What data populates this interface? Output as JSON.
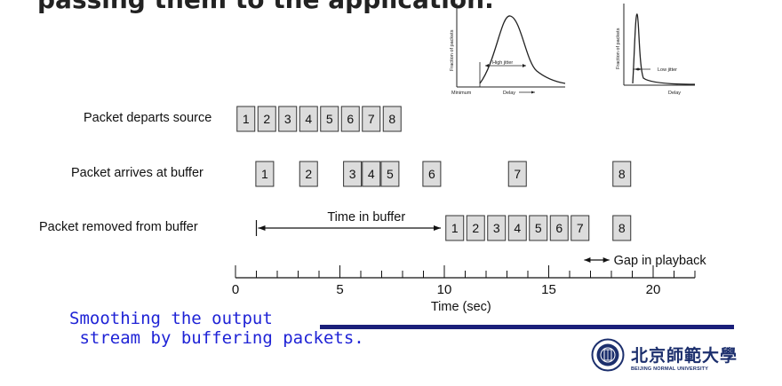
{
  "title_partial": "passing them to the application.",
  "rows": {
    "depart": {
      "label": "Packet departs source",
      "packets": [
        {
          "n": "1",
          "t": 0.5
        },
        {
          "n": "2",
          "t": 1.5
        },
        {
          "n": "3",
          "t": 2.5
        },
        {
          "n": "4",
          "t": 3.5
        },
        {
          "n": "5",
          "t": 4.5
        },
        {
          "n": "6",
          "t": 5.5
        },
        {
          "n": "7",
          "t": 6.5
        },
        {
          "n": "8",
          "t": 7.5
        }
      ]
    },
    "arrive": {
      "label": "Packet arrives at buffer",
      "packets": [
        {
          "n": "1",
          "t": 1.4
        },
        {
          "n": "2",
          "t": 3.5
        },
        {
          "n": "3",
          "t": 5.6
        },
        {
          "n": "4",
          "t": 6.5
        },
        {
          "n": "5",
          "t": 7.4
        },
        {
          "n": "6",
          "t": 9.4
        },
        {
          "n": "7",
          "t": 13.5
        },
        {
          "n": "8",
          "t": 18.5
        }
      ]
    },
    "removed": {
      "label": "Packet removed from buffer",
      "packets": [
        {
          "n": "1",
          "t": 10.5
        },
        {
          "n": "2",
          "t": 11.5
        },
        {
          "n": "3",
          "t": 12.5
        },
        {
          "n": "4",
          "t": 13.5
        },
        {
          "n": "5",
          "t": 14.5
        },
        {
          "n": "6",
          "t": 15.5
        },
        {
          "n": "7",
          "t": 16.5
        },
        {
          "n": "8",
          "t": 18.5
        }
      ]
    }
  },
  "annotations": {
    "time_in_buffer": "Time in buffer",
    "time_in_buffer_range": [
      1,
      10
    ],
    "gap_in_playback": "Gap in playback",
    "gap_range": [
      16.7,
      17.9
    ]
  },
  "axis": {
    "label": "Time (sec)",
    "min": 0,
    "max": 22,
    "major_ticks": [
      0,
      5,
      10,
      15,
      20
    ],
    "minor_step": 1
  },
  "insets": [
    {
      "ylabel": "Fraction of packets",
      "xlabel": "Delay",
      "x_start": "Minimum",
      "annotation": "High jitter"
    },
    {
      "ylabel": "Fraction of packets",
      "xlabel": "Delay",
      "annotation": "Low jitter"
    }
  ],
  "caption": {
    "line1": "Smoothing the output",
    "line2": " stream by buffering packets."
  },
  "logo": {
    "name_cn": "北京師範大學",
    "name_en": "BEIJING NORMAL UNIVERSITY"
  },
  "colors": {
    "box_fill": "#dcdcdc",
    "box_stroke": "#333333",
    "caption_text": "#1f23d6",
    "underline_bar": "#1a1f7a",
    "logo": "#1c2f6d"
  }
}
